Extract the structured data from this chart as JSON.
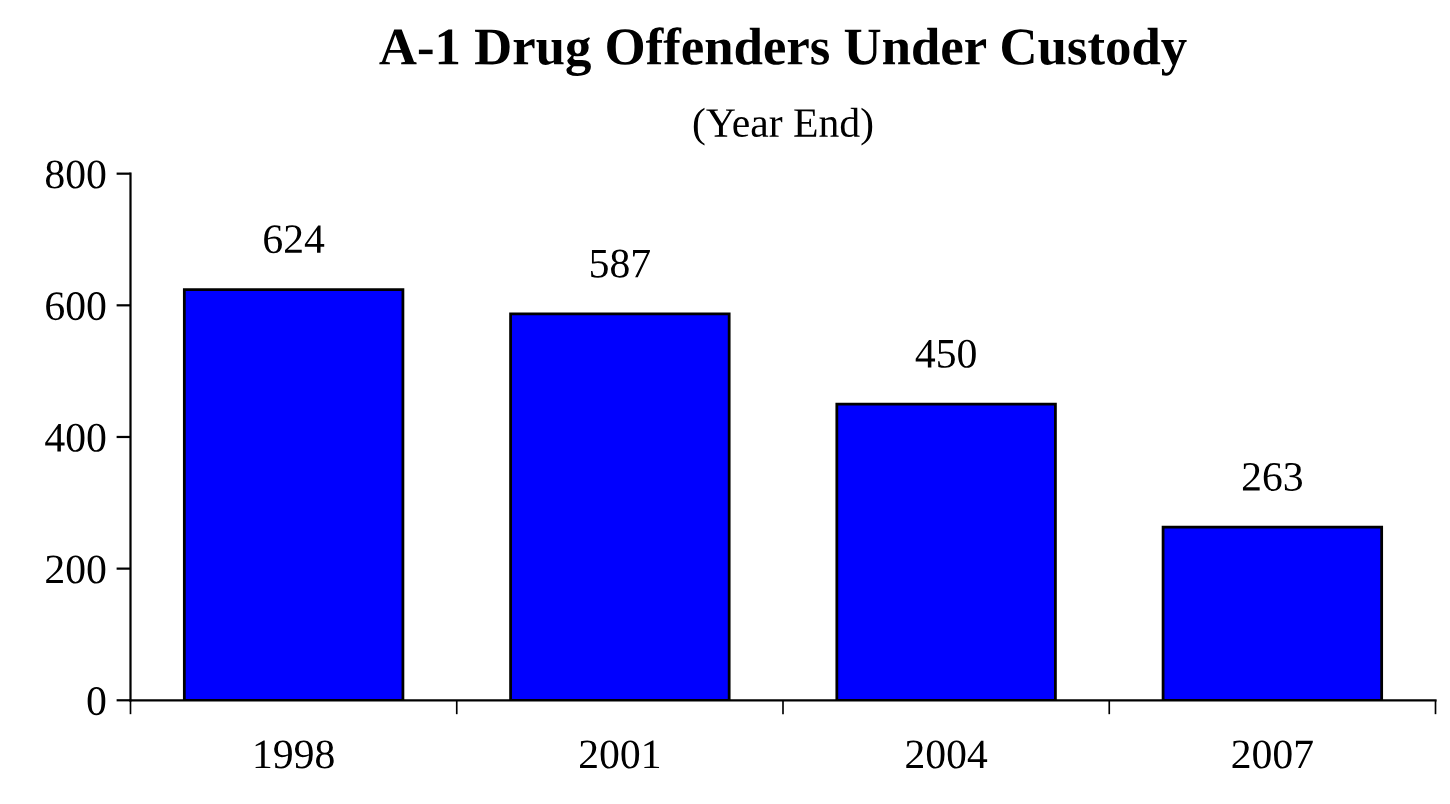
{
  "chart_data": {
    "type": "bar",
    "title": "A-1 Drug Offenders Under Custody",
    "subtitle": "(Year End)",
    "categories": [
      "1998",
      "2001",
      "2004",
      "2007"
    ],
    "values": [
      624,
      587,
      450,
      263
    ],
    "color": "#0000ff",
    "ylim": [
      0,
      800
    ],
    "yticks": [
      0,
      200,
      400,
      600,
      800
    ],
    "grid": false,
    "data_labels": true
  }
}
